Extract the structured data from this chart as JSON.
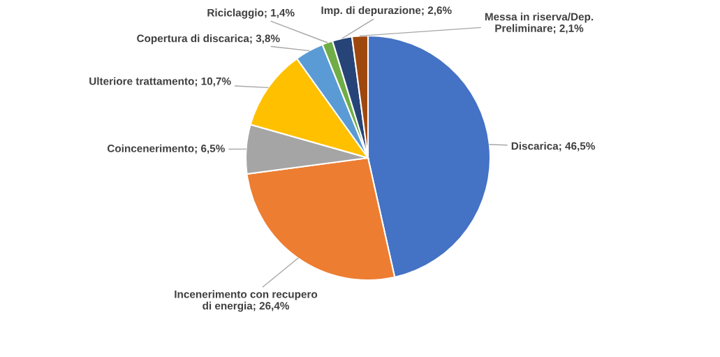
{
  "chart_data": {
    "type": "pie",
    "categories": [
      "Discarica",
      "Incenerimento con recupero di energia",
      "Coincenerimento",
      "Ulteriore trattamento",
      "Copertura di discarica",
      "Riciclaggio",
      "Imp. di depurazione",
      "Messa in riserva/Dep. Preliminare"
    ],
    "values": [
      46.5,
      26.4,
      6.5,
      10.7,
      3.8,
      1.4,
      2.6,
      2.1
    ],
    "colors": [
      "#4472c4",
      "#ed7d31",
      "#a5a5a5",
      "#ffc000",
      "#5b9bd5",
      "#70ad47",
      "#264478",
      "#9e480e"
    ],
    "value_labels": [
      "46,5%",
      "26,4%",
      "6,5%",
      "10,7%",
      "3,8%",
      "1,4%",
      "2,6%",
      "2,1%"
    ],
    "legend": false
  }
}
